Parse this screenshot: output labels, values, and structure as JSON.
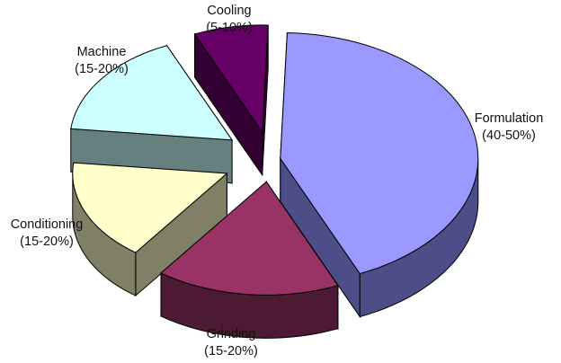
{
  "chart_data": {
    "type": "pie",
    "style": "3d-exploded",
    "title": "",
    "slices": [
      {
        "key": "formulation",
        "label": "Formulation",
        "range": "(40-50%)",
        "value": 45,
        "top_color": "#9999ff",
        "side_color": "#4d4d88"
      },
      {
        "key": "grinding",
        "label": "Grinding",
        "range": "(15-20%)",
        "value": 17.5,
        "top_color": "#993366",
        "side_color": "#4d1a33"
      },
      {
        "key": "conditioning",
        "label": "Conditioning",
        "range": "(15-20%)",
        "value": 17.5,
        "top_color": "#ffffcc",
        "side_color": "#808066"
      },
      {
        "key": "machine",
        "label": "Machine",
        "range": "(15-20%)",
        "value": 17.5,
        "top_color": "#ccffff",
        "side_color": "#668080"
      },
      {
        "key": "cooling",
        "label": "Cooling",
        "range": "(5-10%)",
        "value": 7.5,
        "top_color": "#660066",
        "side_color": "#330033"
      }
    ],
    "legend": "none",
    "edge_color": "#000000"
  }
}
